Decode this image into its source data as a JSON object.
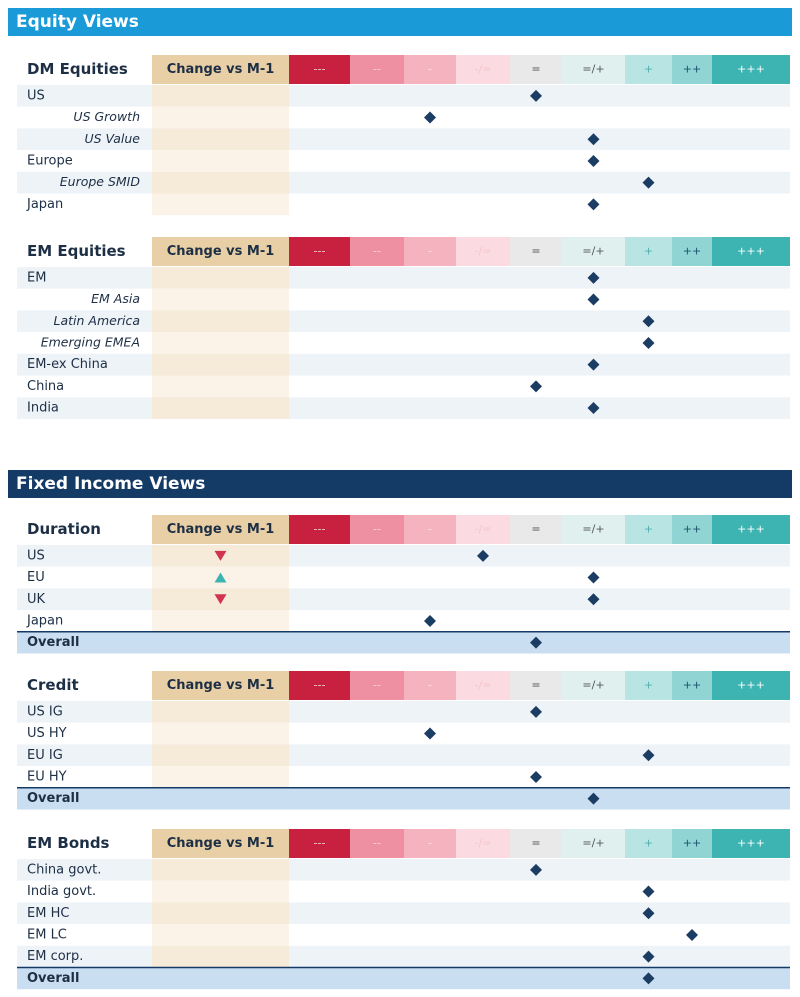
{
  "columns": {
    "change": "Change vs M-1",
    "scale": [
      "---",
      "--",
      "-",
      "-/=",
      "=",
      "=/+",
      "+",
      "++",
      "+++"
    ],
    "scale_colors": [
      "#c8203f",
      "#ef8fa2",
      "#f5b3c0",
      "#fbdbe1",
      "#e9e9e9",
      "#dff0ef",
      "#b8e5e3",
      "#90d4d3",
      "#3db4b1"
    ],
    "scale_text_colors": [
      "#f6c9d2",
      "#fbd3dc",
      "#fde3e8",
      "#f5c4ce",
      "#555555",
      "#555555",
      "#4fb0ad",
      "#1f4e6e",
      "#ffffff"
    ]
  },
  "sections": [
    {
      "title": "Equity Views",
      "color": "#1a9ad6",
      "tables": [
        {
          "title": "DM Equities",
          "rows": [
            {
              "label": "US",
              "view": 4
            },
            {
              "label": "US Growth",
              "view": 2,
              "indent": true
            },
            {
              "label": "US Value",
              "view": 5,
              "indent": true
            },
            {
              "label": "Europe",
              "view": 5
            },
            {
              "label": "Europe SMID",
              "view": 6,
              "indent": true
            },
            {
              "label": "Japan",
              "view": 5
            }
          ]
        },
        {
          "title": "EM Equities",
          "rows": [
            {
              "label": "EM",
              "view": 5
            },
            {
              "label": "EM Asia",
              "view": 5,
              "indent": true
            },
            {
              "label": "Latin America",
              "view": 6,
              "indent": true
            },
            {
              "label": "Emerging EMEA",
              "view": 6,
              "indent": true
            },
            {
              "label": "EM-ex China",
              "view": 5
            },
            {
              "label": "China",
              "view": 4
            },
            {
              "label": "India",
              "view": 5
            }
          ]
        }
      ]
    },
    {
      "title": "Fixed Income Views",
      "color": "#143a66",
      "tables": [
        {
          "title": "Duration",
          "rows": [
            {
              "label": "US",
              "view": 3,
              "change": "down"
            },
            {
              "label": "EU",
              "view": 5,
              "change": "up"
            },
            {
              "label": "UK",
              "view": 5,
              "change": "down"
            },
            {
              "label": "Japan",
              "view": 2
            }
          ],
          "overall": {
            "label": "Overall",
            "view": 4
          }
        },
        {
          "title": "Credit",
          "rows": [
            {
              "label": "US IG",
              "view": 4
            },
            {
              "label": "US HY",
              "view": 2
            },
            {
              "label": "EU IG",
              "view": 6
            },
            {
              "label": "EU HY",
              "view": 4
            }
          ],
          "overall": {
            "label": "Overall",
            "view": 5
          }
        },
        {
          "title": "EM Bonds",
          "rows": [
            {
              "label": "China govt.",
              "view": 4
            },
            {
              "label": "India govt.",
              "view": 6
            },
            {
              "label": "EM HC",
              "view": 6
            },
            {
              "label": "EM LC",
              "view": 7
            },
            {
              "label": "EM corp.",
              "view": 6
            }
          ],
          "overall": {
            "label": "Overall",
            "view": 6
          }
        }
      ]
    }
  ]
}
